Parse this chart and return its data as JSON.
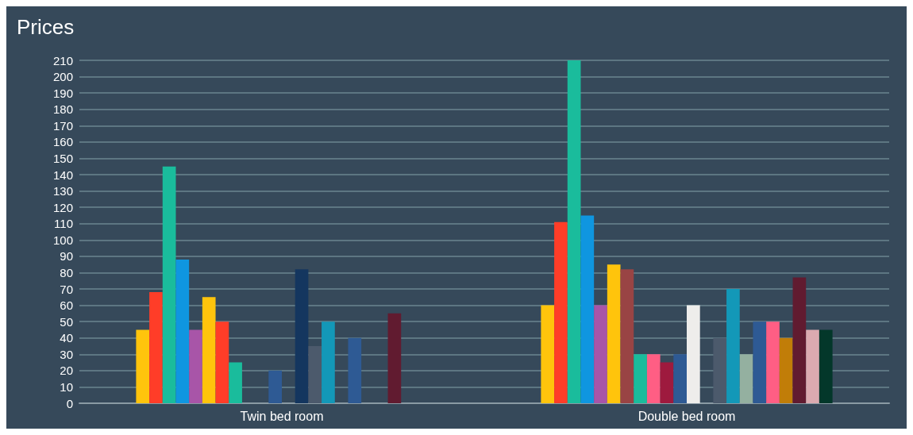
{
  "chart_data": {
    "type": "bar",
    "title": "Prices",
    "categories": [
      "Twin bed room",
      "Double bed room"
    ],
    "series": [
      {
        "color": "#ffc40c",
        "values": [
          45,
          60
        ]
      },
      {
        "color": "#ff3d28",
        "values": [
          68,
          111
        ]
      },
      {
        "color": "#1abc9c",
        "values": [
          145,
          210
        ]
      },
      {
        "color": "#0f96e0",
        "values": [
          88,
          115
        ]
      },
      {
        "color": "#a855a8",
        "values": [
          45,
          60
        ]
      },
      {
        "color": "#ffc40c",
        "values": [
          65,
          85
        ]
      },
      {
        "color": "#ff3d28",
        "colors": [
          "#ff3d28",
          "#994444"
        ],
        "values": [
          50,
          82
        ]
      },
      {
        "color": "#1abc9c",
        "values": [
          25,
          30
        ]
      },
      {
        "color": "#ff5e84",
        "values": [
          null,
          30
        ]
      },
      {
        "color": "#9e1a3e",
        "values": [
          null,
          25
        ]
      },
      {
        "color": "#2e5a94",
        "values": [
          20,
          30
        ]
      },
      {
        "color": "#eeedeb",
        "values": [
          null,
          60
        ]
      },
      {
        "color": "#14365f",
        "values": [
          82,
          null
        ]
      },
      {
        "color": "#4c5a6c",
        "values": [
          35,
          40
        ]
      },
      {
        "color": "#1398b8",
        "values": [
          50,
          70
        ]
      },
      {
        "color": "#94b0a0",
        "values": [
          null,
          30
        ]
      },
      {
        "color": "#2e5a94",
        "values": [
          40,
          50
        ]
      },
      {
        "color": "#ff5e84",
        "values": [
          null,
          50
        ]
      },
      {
        "color": "#c17d08",
        "values": [
          null,
          40
        ]
      },
      {
        "color": "#611b30",
        "values": [
          55,
          77
        ]
      },
      {
        "color": "#dbaab0",
        "values": [
          null,
          45
        ]
      },
      {
        "color": "#03372a",
        "values": [
          null,
          45
        ]
      }
    ],
    "ylim": [
      0,
      210
    ],
    "yticks": [
      0,
      10,
      20,
      30,
      40,
      50,
      60,
      70,
      80,
      90,
      100,
      110,
      120,
      130,
      140,
      150,
      160,
      170,
      180,
      190,
      200,
      210
    ],
    "grid": "y"
  }
}
